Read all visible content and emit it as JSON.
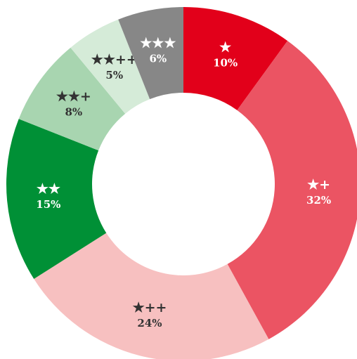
{
  "chart_data": {
    "type": "donut",
    "categories": [
      "★",
      "★+",
      "★++",
      "★★",
      "★★+",
      "★★++",
      "★★★"
    ],
    "values": [
      10,
      32,
      24,
      15,
      8,
      5,
      6
    ],
    "value_labels": [
      "10%",
      "32%",
      "24%",
      "15%",
      "8%",
      "5%",
      "6%"
    ],
    "colors": [
      "#e2001a",
      "#eb5463",
      "#f7c0c0",
      "#009036",
      "#a8d5b0",
      "#d5ebd8",
      "#878787"
    ]
  }
}
